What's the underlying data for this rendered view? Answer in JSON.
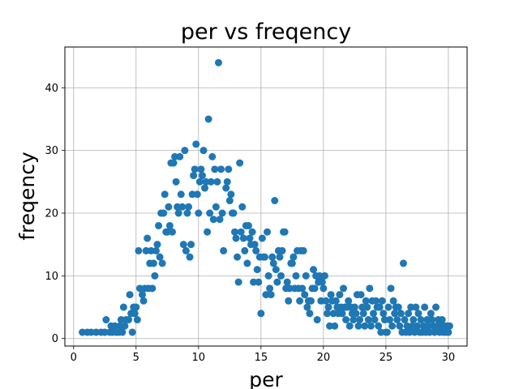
{
  "chart_data": {
    "type": "scatter",
    "title": "per vs freqency",
    "xlabel": "per",
    "ylabel": "freqency",
    "xlim": [
      -0.7,
      31.5
    ],
    "ylim": [
      -1.2,
      46.5
    ],
    "x_ticks": [
      0,
      5,
      10,
      15,
      20,
      25,
      30
    ],
    "y_ticks": [
      0,
      10,
      20,
      30,
      40
    ],
    "grid": true,
    "marker_color": "#1f77b4",
    "series": [
      {
        "points": [
          [
            0.7,
            1
          ],
          [
            1.1,
            1
          ],
          [
            1.4,
            1
          ],
          [
            1.8,
            1
          ],
          [
            2.2,
            1
          ],
          [
            2.5,
            1
          ],
          [
            2.6,
            3
          ],
          [
            2.9,
            1
          ],
          [
            3.0,
            2
          ],
          [
            3.1,
            1
          ],
          [
            3.3,
            2
          ],
          [
            3.4,
            1
          ],
          [
            3.6,
            1
          ],
          [
            3.7,
            2
          ],
          [
            3.8,
            3
          ],
          [
            3.9,
            1
          ],
          [
            4.0,
            5
          ],
          [
            4.1,
            2
          ],
          [
            4.2,
            3
          ],
          [
            4.4,
            3
          ],
          [
            4.5,
            7
          ],
          [
            4.6,
            4
          ],
          [
            4.7,
            1
          ],
          [
            4.8,
            5
          ],
          [
            4.9,
            4
          ],
          [
            5.0,
            5
          ],
          [
            5.1,
            3
          ],
          [
            5.2,
            14
          ],
          [
            5.3,
            8
          ],
          [
            5.5,
            7
          ],
          [
            5.6,
            6
          ],
          [
            5.7,
            8
          ],
          [
            5.8,
            14
          ],
          [
            5.9,
            16
          ],
          [
            6.0,
            8
          ],
          [
            6.1,
            12
          ],
          [
            6.2,
            14
          ],
          [
            6.3,
            8
          ],
          [
            6.4,
            12
          ],
          [
            6.5,
            10
          ],
          [
            6.6,
            14
          ],
          [
            6.7,
            15
          ],
          [
            6.8,
            18
          ],
          [
            6.9,
            13
          ],
          [
            7.0,
            20
          ],
          [
            7.1,
            12
          ],
          [
            7.2,
            20
          ],
          [
            7.3,
            23
          ],
          [
            7.4,
            17
          ],
          [
            7.5,
            17
          ],
          [
            7.6,
            21
          ],
          [
            7.7,
            18
          ],
          [
            7.8,
            28
          ],
          [
            7.9,
            17
          ],
          [
            8.0,
            28
          ],
          [
            8.1,
            29
          ],
          [
            8.2,
            25
          ],
          [
            8.3,
            21
          ],
          [
            8.4,
            20
          ],
          [
            8.5,
            29
          ],
          [
            8.6,
            23
          ],
          [
            8.7,
            21
          ],
          [
            8.8,
            15
          ],
          [
            8.9,
            30
          ],
          [
            9.0,
            14
          ],
          [
            9.1,
            20
          ],
          [
            9.2,
            21
          ],
          [
            9.3,
            13
          ],
          [
            9.4,
            15
          ],
          [
            9.5,
            23
          ],
          [
            9.6,
            26
          ],
          [
            9.7,
            27
          ],
          [
            9.8,
            31
          ],
          [
            9.9,
            23
          ],
          [
            10.0,
            20
          ],
          [
            10.1,
            25
          ],
          [
            10.2,
            27
          ],
          [
            10.3,
            26
          ],
          [
            10.4,
            30
          ],
          [
            10.5,
            24
          ],
          [
            10.6,
            25
          ],
          [
            10.7,
            17
          ],
          [
            10.8,
            35
          ],
          [
            10.9,
            20
          ],
          [
            11.0,
            25
          ],
          [
            11.1,
            29
          ],
          [
            11.2,
            19
          ],
          [
            11.3,
            27
          ],
          [
            11.4,
            21
          ],
          [
            11.5,
            25
          ],
          [
            11.6,
            44
          ],
          [
            11.7,
            19
          ],
          [
            11.8,
            27
          ],
          [
            11.9,
            20
          ],
          [
            12.0,
            14
          ],
          [
            12.2,
            24
          ],
          [
            12.3,
            25
          ],
          [
            12.4,
            27
          ],
          [
            12.5,
            22
          ],
          [
            12.6,
            23
          ],
          [
            12.7,
            20
          ],
          [
            12.8,
            20
          ],
          [
            12.9,
            17
          ],
          [
            13.0,
            16
          ],
          [
            13.1,
            13
          ],
          [
            13.2,
            9
          ],
          [
            13.3,
            28
          ],
          [
            13.4,
            17
          ],
          [
            13.5,
            21
          ],
          [
            13.6,
            16
          ],
          [
            13.7,
            14
          ],
          [
            13.8,
            18
          ],
          [
            13.9,
            12
          ],
          [
            14.0,
            18
          ],
          [
            14.1,
            16
          ],
          [
            14.2,
            15
          ],
          [
            14.3,
            17
          ],
          [
            14.4,
            9
          ],
          [
            14.5,
            15
          ],
          [
            14.6,
            14
          ],
          [
            14.7,
            11
          ],
          [
            14.8,
            9
          ],
          [
            14.9,
            13
          ],
          [
            15.0,
            4
          ],
          [
            15.1,
            16
          ],
          [
            15.2,
            13
          ],
          [
            15.3,
            13
          ],
          [
            15.4,
            7
          ],
          [
            15.5,
            17
          ],
          [
            15.6,
            10
          ],
          [
            15.7,
            8
          ],
          [
            15.8,
            7
          ],
          [
            15.9,
            13
          ],
          [
            16.0,
            12
          ],
          [
            16.1,
            22
          ],
          [
            16.2,
            11
          ],
          [
            16.3,
            9
          ],
          [
            16.4,
            14
          ],
          [
            16.5,
            13
          ],
          [
            16.6,
            10
          ],
          [
            16.7,
            14
          ],
          [
            16.8,
            17
          ],
          [
            16.9,
            17
          ],
          [
            17.0,
            8
          ],
          [
            17.1,
            9
          ],
          [
            17.2,
            6
          ],
          [
            17.3,
            8
          ],
          [
            17.4,
            12
          ],
          [
            17.5,
            12
          ],
          [
            17.6,
            13
          ],
          [
            17.7,
            8
          ],
          [
            17.8,
            10
          ],
          [
            17.9,
            14
          ],
          [
            18.0,
            8
          ],
          [
            18.1,
            6
          ],
          [
            18.2,
            14
          ],
          [
            18.3,
            8
          ],
          [
            18.4,
            14
          ],
          [
            18.5,
            7
          ],
          [
            18.6,
            10
          ],
          [
            18.7,
            5
          ],
          [
            18.8,
            6
          ],
          [
            18.9,
            4
          ],
          [
            19.0,
            6
          ],
          [
            19.1,
            8
          ],
          [
            19.2,
            11
          ],
          [
            19.3,
            8
          ],
          [
            19.4,
            10
          ],
          [
            19.5,
            3
          ],
          [
            19.6,
            9
          ],
          [
            19.7,
            10
          ],
          [
            19.8,
            6
          ],
          [
            19.9,
            9
          ],
          [
            20.0,
            8
          ],
          [
            20.1,
            10
          ],
          [
            20.2,
            6
          ],
          [
            20.3,
            4
          ],
          [
            20.4,
            5
          ],
          [
            20.5,
            2
          ],
          [
            20.6,
            7
          ],
          [
            20.7,
            6
          ],
          [
            20.8,
            4
          ],
          [
            20.9,
            2
          ],
          [
            21.0,
            6
          ],
          [
            21.1,
            5
          ],
          [
            21.2,
            4
          ],
          [
            21.3,
            7
          ],
          [
            21.4,
            5
          ],
          [
            21.5,
            4
          ],
          [
            21.6,
            8
          ],
          [
            21.7,
            5
          ],
          [
            21.8,
            3
          ],
          [
            21.9,
            5
          ],
          [
            22.0,
            6
          ],
          [
            22.1,
            2
          ],
          [
            22.2,
            5
          ],
          [
            22.3,
            4
          ],
          [
            22.4,
            3
          ],
          [
            22.5,
            5
          ],
          [
            22.6,
            4
          ],
          [
            22.7,
            7
          ],
          [
            22.8,
            2
          ],
          [
            22.9,
            3
          ],
          [
            23.0,
            7
          ],
          [
            23.1,
            5
          ],
          [
            23.2,
            4
          ],
          [
            23.3,
            2
          ],
          [
            23.4,
            6
          ],
          [
            23.5,
            5
          ],
          [
            23.6,
            3
          ],
          [
            23.7,
            8
          ],
          [
            23.8,
            2
          ],
          [
            23.9,
            6
          ],
          [
            24.0,
            4
          ],
          [
            24.1,
            3
          ],
          [
            24.2,
            6
          ],
          [
            24.3,
            5
          ],
          [
            24.4,
            2
          ],
          [
            24.5,
            5
          ],
          [
            24.6,
            1
          ],
          [
            24.7,
            6
          ],
          [
            24.8,
            4
          ],
          [
            24.9,
            3
          ],
          [
            25.0,
            1
          ],
          [
            25.1,
            1
          ],
          [
            25.2,
            5
          ],
          [
            25.3,
            3
          ],
          [
            25.4,
            8
          ],
          [
            25.5,
            2
          ],
          [
            25.6,
            6
          ],
          [
            25.7,
            4
          ],
          [
            25.8,
            5
          ],
          [
            25.9,
            3
          ],
          [
            26.0,
            5
          ],
          [
            26.1,
            2
          ],
          [
            26.2,
            4
          ],
          [
            26.3,
            1
          ],
          [
            26.4,
            12
          ],
          [
            26.5,
            3
          ],
          [
            26.6,
            1
          ],
          [
            26.7,
            2
          ],
          [
            26.8,
            4
          ],
          [
            26.9,
            1
          ],
          [
            27.0,
            5
          ],
          [
            27.1,
            2
          ],
          [
            27.2,
            3
          ],
          [
            27.3,
            1
          ],
          [
            27.4,
            5
          ],
          [
            27.5,
            2
          ],
          [
            27.6,
            4
          ],
          [
            27.7,
            1
          ],
          [
            27.8,
            3
          ],
          [
            27.9,
            1
          ],
          [
            28.0,
            2
          ],
          [
            28.1,
            5
          ],
          [
            28.2,
            1
          ],
          [
            28.3,
            3
          ],
          [
            28.4,
            2
          ],
          [
            28.5,
            1
          ],
          [
            28.6,
            4
          ],
          [
            28.7,
            3
          ],
          [
            28.8,
            2
          ],
          [
            28.9,
            1
          ],
          [
            29.0,
            5
          ],
          [
            29.1,
            2
          ],
          [
            29.2,
            3
          ],
          [
            29.3,
            1
          ],
          [
            29.4,
            2
          ],
          [
            29.5,
            3
          ],
          [
            29.6,
            1
          ],
          [
            29.7,
            2
          ],
          [
            29.8,
            1
          ],
          [
            29.9,
            2
          ],
          [
            30.0,
            1
          ],
          [
            30.1,
            2
          ]
        ]
      }
    ]
  }
}
